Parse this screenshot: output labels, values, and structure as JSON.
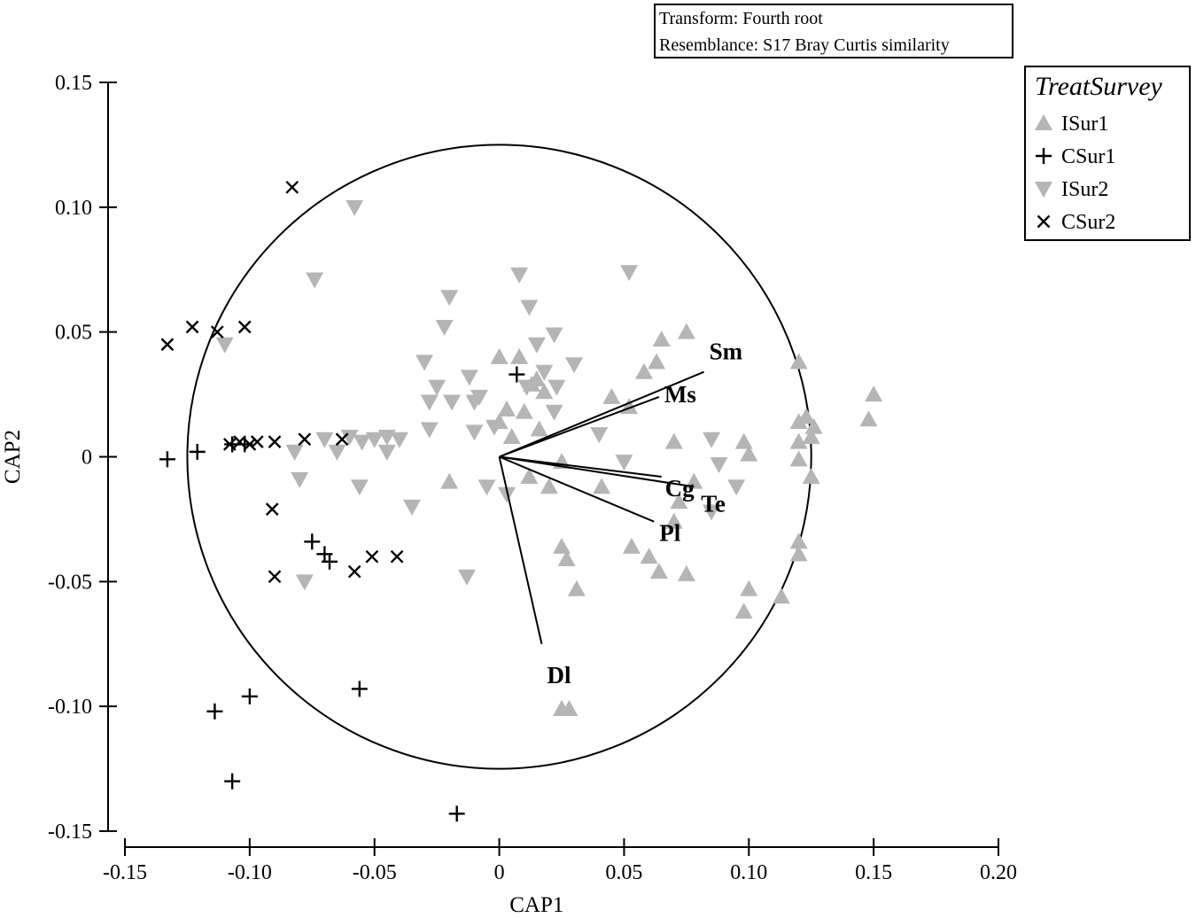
{
  "chart_data": {
    "type": "scatter",
    "xlabel": "CAP1",
    "ylabel": "CAP2",
    "xlim": [
      -0.15,
      0.2
    ],
    "ylim": [
      -0.15,
      0.15
    ],
    "x_ticks": [
      {
        "v": -0.15,
        "label": "-0.15"
      },
      {
        "v": -0.1,
        "label": "-0.10"
      },
      {
        "v": -0.05,
        "label": "-0.05"
      },
      {
        "v": 0,
        "label": "0"
      },
      {
        "v": 0.05,
        "label": "0.05"
      },
      {
        "v": 0.1,
        "label": "0.10"
      },
      {
        "v": 0.15,
        "label": "0.15"
      },
      {
        "v": 0.2,
        "label": "0.20"
      }
    ],
    "y_ticks": [
      {
        "v": 0.15,
        "label": "0.15"
      },
      {
        "v": 0.1,
        "label": "0.10"
      },
      {
        "v": 0.05,
        "label": "0.05"
      },
      {
        "v": 0,
        "label": "0"
      },
      {
        "v": -0.05,
        "label": "-0.05"
      },
      {
        "v": -0.1,
        "label": "-0.10"
      },
      {
        "v": -0.15,
        "label": "-0.15"
      }
    ],
    "grid": false,
    "annotation_lines": [
      "Transform: Fourth root",
      "Resemblance: S17 Bray Curtis similarity"
    ],
    "legend": {
      "title": "TreatSurvey",
      "position": "top-right"
    },
    "circle_radius": 0.125,
    "series": [
      {
        "name": "ISur1",
        "marker": "triangle-up",
        "color": "#b5b5b5",
        "points": [
          [
            0,
            0.04
          ],
          [
            0.008,
            0.04
          ],
          [
            0.01,
            0.018
          ],
          [
            0.013,
            0.029
          ],
          [
            0.015,
            0.031
          ],
          [
            0.018,
            0.026
          ],
          [
            0.016,
            0.011
          ],
          [
            0.003,
            0.019
          ],
          [
            0,
            0.014
          ],
          [
            0.005,
            0.008
          ],
          [
            -0.02,
            -0.01
          ],
          [
            0.012,
            -0.008
          ],
          [
            0.02,
            -0.012
          ],
          [
            0.025,
            -0.002
          ],
          [
            0.027,
            -0.041
          ],
          [
            0.025,
            -0.036
          ],
          [
            0.031,
            -0.053
          ],
          [
            0.041,
            -0.012
          ],
          [
            0.045,
            0.024
          ],
          [
            0.052,
            0.02
          ],
          [
            0.058,
            0.034
          ],
          [
            0.063,
            0.038
          ],
          [
            0.065,
            0.047
          ],
          [
            0.075,
            0.05
          ],
          [
            0.07,
            0.006
          ],
          [
            0.07,
            -0.026
          ],
          [
            0.072,
            -0.018
          ],
          [
            0.06,
            -0.04
          ],
          [
            0.053,
            -0.036
          ],
          [
            0.064,
            -0.046
          ],
          [
            0.075,
            -0.047
          ],
          [
            0.078,
            -0.01
          ],
          [
            0.098,
            0.006
          ],
          [
            0.1,
            0.001
          ],
          [
            0.12,
            0.038
          ],
          [
            0.123,
            0.016
          ],
          [
            0.12,
            0.014
          ],
          [
            0.126,
            0.012
          ],
          [
            0.125,
            0.008
          ],
          [
            0.12,
            0.006
          ],
          [
            0.12,
            -0.001
          ],
          [
            0.125,
            -0.008
          ],
          [
            0.12,
            -0.034
          ],
          [
            0.12,
            -0.039
          ],
          [
            0.113,
            -0.056
          ],
          [
            0.1,
            -0.053
          ],
          [
            0.098,
            -0.062
          ],
          [
            0.15,
            0.025
          ],
          [
            0.148,
            0.015
          ],
          [
            0.025,
            -0.101
          ],
          [
            0.028,
            -0.101
          ]
        ]
      },
      {
        "name": "CSur1",
        "marker": "plus",
        "color": "#000000",
        "points": [
          [
            -0.133,
            -0.001
          ],
          [
            -0.121,
            0.002
          ],
          [
            -0.107,
            0.005
          ],
          [
            -0.102,
            0.005
          ],
          [
            -0.075,
            -0.034
          ],
          [
            -0.07,
            -0.039
          ],
          [
            -0.068,
            -0.042
          ],
          [
            -0.114,
            -0.102
          ],
          [
            -0.1,
            -0.096
          ],
          [
            -0.107,
            -0.13
          ],
          [
            -0.056,
            -0.093
          ],
          [
            -0.017,
            -0.143
          ],
          [
            0.007,
            0.033
          ]
        ]
      },
      {
        "name": "ISur2",
        "marker": "triangle-down",
        "color": "#b5b5b5",
        "points": [
          [
            -0.058,
            0.1
          ],
          [
            -0.074,
            0.071
          ],
          [
            -0.11,
            0.045
          ],
          [
            -0.03,
            0.038
          ],
          [
            -0.022,
            0.052
          ],
          [
            -0.02,
            0.064
          ],
          [
            -0.012,
            0.032
          ],
          [
            -0.019,
            0.022
          ],
          [
            -0.01,
            0.022
          ],
          [
            -0.028,
            0.022
          ],
          [
            -0.025,
            0.028
          ],
          [
            -0.01,
            0.01
          ],
          [
            -0.028,
            0.011
          ],
          [
            -0.008,
            0.024
          ],
          [
            -0.002,
            0.012
          ],
          [
            0.008,
            0.073
          ],
          [
            0.012,
            0.06
          ],
          [
            0.015,
            0.045
          ],
          [
            0.022,
            0.049
          ],
          [
            0.018,
            0.034
          ],
          [
            0.023,
            0.028
          ],
          [
            0.03,
            0.037
          ],
          [
            0.011,
            0.028
          ],
          [
            0.022,
            0.018
          ],
          [
            0.052,
            0.074
          ],
          [
            0.04,
            0.009
          ],
          [
            0.05,
            -0.002
          ],
          [
            -0.04,
            0.007
          ],
          [
            -0.05,
            0.007
          ],
          [
            -0.055,
            0.006
          ],
          [
            -0.065,
            0.002
          ],
          [
            -0.07,
            0.007
          ],
          [
            -0.06,
            0.008
          ],
          [
            -0.045,
            0.008
          ],
          [
            -0.045,
            0.002
          ],
          [
            -0.082,
            0.002
          ],
          [
            -0.08,
            -0.009
          ],
          [
            -0.056,
            -0.012
          ],
          [
            -0.035,
            -0.02
          ],
          [
            -0.005,
            -0.012
          ],
          [
            0.003,
            -0.015
          ],
          [
            -0.013,
            -0.048
          ],
          [
            -0.078,
            -0.05
          ],
          [
            0.085,
            0.007
          ],
          [
            0.088,
            -0.003
          ],
          [
            0.095,
            -0.012
          ],
          [
            0.085,
            -0.022
          ]
        ]
      },
      {
        "name": "CSur2",
        "marker": "x",
        "color": "#000000",
        "points": [
          [
            -0.083,
            0.108
          ],
          [
            -0.133,
            0.045
          ],
          [
            -0.123,
            0.052
          ],
          [
            -0.113,
            0.05
          ],
          [
            -0.102,
            0.052
          ],
          [
            -0.108,
            0.005
          ],
          [
            -0.104,
            0.006
          ],
          [
            -0.1,
            0.005
          ],
          [
            -0.097,
            0.006
          ],
          [
            -0.09,
            0.006
          ],
          [
            -0.078,
            0.007
          ],
          [
            -0.063,
            0.007
          ],
          [
            -0.091,
            -0.021
          ],
          [
            -0.09,
            -0.048
          ],
          [
            -0.058,
            -0.046
          ],
          [
            -0.051,
            -0.04
          ],
          [
            -0.041,
            -0.04
          ]
        ]
      }
    ],
    "vectors": [
      {
        "label": "Sm",
        "x": 0.082,
        "y": 0.034
      },
      {
        "label": "Ms",
        "x": 0.064,
        "y": 0.024
      },
      {
        "label": "Cg",
        "x": 0.065,
        "y": -0.008
      },
      {
        "label": "Te",
        "x": 0.078,
        "y": -0.012
      },
      {
        "label": "Pl",
        "x": 0.062,
        "y": -0.026
      },
      {
        "label": "Dl",
        "x": 0.017,
        "y": -0.075
      }
    ]
  }
}
